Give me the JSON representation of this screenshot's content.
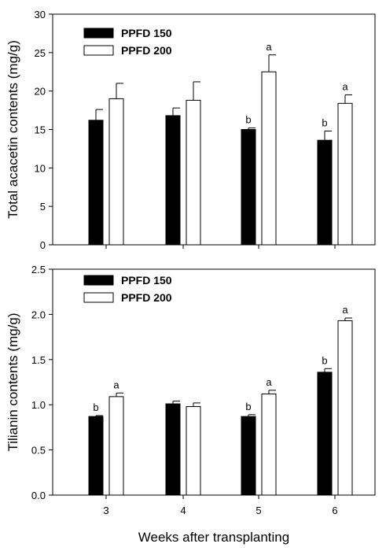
{
  "chart_data": [
    {
      "type": "bar",
      "categories": [
        "3",
        "4",
        "5",
        "6"
      ],
      "ylabel": "Total acacetin contents (mg/g)",
      "xlabel": "",
      "ylim": [
        0,
        30
      ],
      "yticks": [
        "0",
        "5",
        "10",
        "15",
        "20",
        "25",
        "30"
      ],
      "legend": "top-left",
      "series": [
        {
          "name": "PPFD 150",
          "color": "#000000",
          "values": [
            16.2,
            16.8,
            15.0,
            13.6
          ],
          "errors": [
            1.4,
            1.0,
            0.2,
            1.2
          ],
          "labels": [
            "",
            "",
            "b",
            "b"
          ]
        },
        {
          "name": "PPFD 200",
          "color": "#ffffff",
          "values": [
            19.0,
            18.8,
            22.5,
            18.4
          ],
          "errors": [
            2.0,
            2.4,
            2.2,
            1.1
          ],
          "labels": [
            "",
            "",
            "a",
            "a"
          ]
        }
      ]
    },
    {
      "type": "bar",
      "categories": [
        "3",
        "4",
        "5",
        "6"
      ],
      "ylabel": "Tilianin contents (mg/g)",
      "xlabel": "Weeks after transplanting",
      "ylim": [
        0,
        2.5
      ],
      "yticks": [
        "0.0",
        "0.5",
        "1.0",
        "1.5",
        "2.0",
        "2.5"
      ],
      "legend": "top-left",
      "series": [
        {
          "name": "PPFD 150",
          "color": "#000000",
          "values": [
            0.87,
            1.01,
            0.87,
            1.36
          ],
          "errors": [
            0.01,
            0.03,
            0.02,
            0.04
          ],
          "labels": [
            "b",
            "",
            "b",
            "b"
          ]
        },
        {
          "name": "PPFD 200",
          "color": "#ffffff",
          "values": [
            1.09,
            0.98,
            1.12,
            1.93
          ],
          "errors": [
            0.04,
            0.04,
            0.04,
            0.03
          ],
          "labels": [
            "a",
            "",
            "a",
            "a"
          ]
        }
      ]
    }
  ]
}
